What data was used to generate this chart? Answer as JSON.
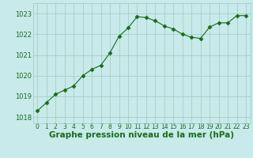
{
  "x": [
    0,
    1,
    2,
    3,
    4,
    5,
    6,
    7,
    8,
    9,
    10,
    11,
    12,
    13,
    14,
    15,
    16,
    17,
    18,
    19,
    20,
    21,
    22,
    23
  ],
  "y": [
    1018.3,
    1018.7,
    1019.1,
    1019.3,
    1019.5,
    1020.0,
    1020.3,
    1020.5,
    1021.1,
    1021.9,
    1022.3,
    1022.85,
    1022.8,
    1022.65,
    1022.4,
    1022.25,
    1022.0,
    1021.85,
    1021.8,
    1022.35,
    1022.55,
    1022.55,
    1022.9,
    1022.9
  ],
  "line_color": "#1a6b1a",
  "marker": "D",
  "marker_size": 2.5,
  "bg_color": "#c8eaea",
  "grid_color": "#a0c8c0",
  "xlabel": "Graphe pression niveau de la mer (hPa)",
  "xlabel_fontsize": 7.5,
  "xlabel_color": "#1a6b1a",
  "xlabel_bold": true,
  "yticks": [
    1018,
    1019,
    1020,
    1021,
    1022,
    1023
  ],
  "xticks": [
    0,
    1,
    2,
    3,
    4,
    5,
    6,
    7,
    8,
    9,
    10,
    11,
    12,
    13,
    14,
    15,
    16,
    17,
    18,
    19,
    20,
    21,
    22,
    23
  ],
  "ylim": [
    1017.7,
    1023.5
  ],
  "xlim": [
    -0.5,
    23.5
  ],
  "ytick_fontsize": 6.0,
  "xtick_fontsize": 5.5,
  "tick_color": "#1a6b1a"
}
